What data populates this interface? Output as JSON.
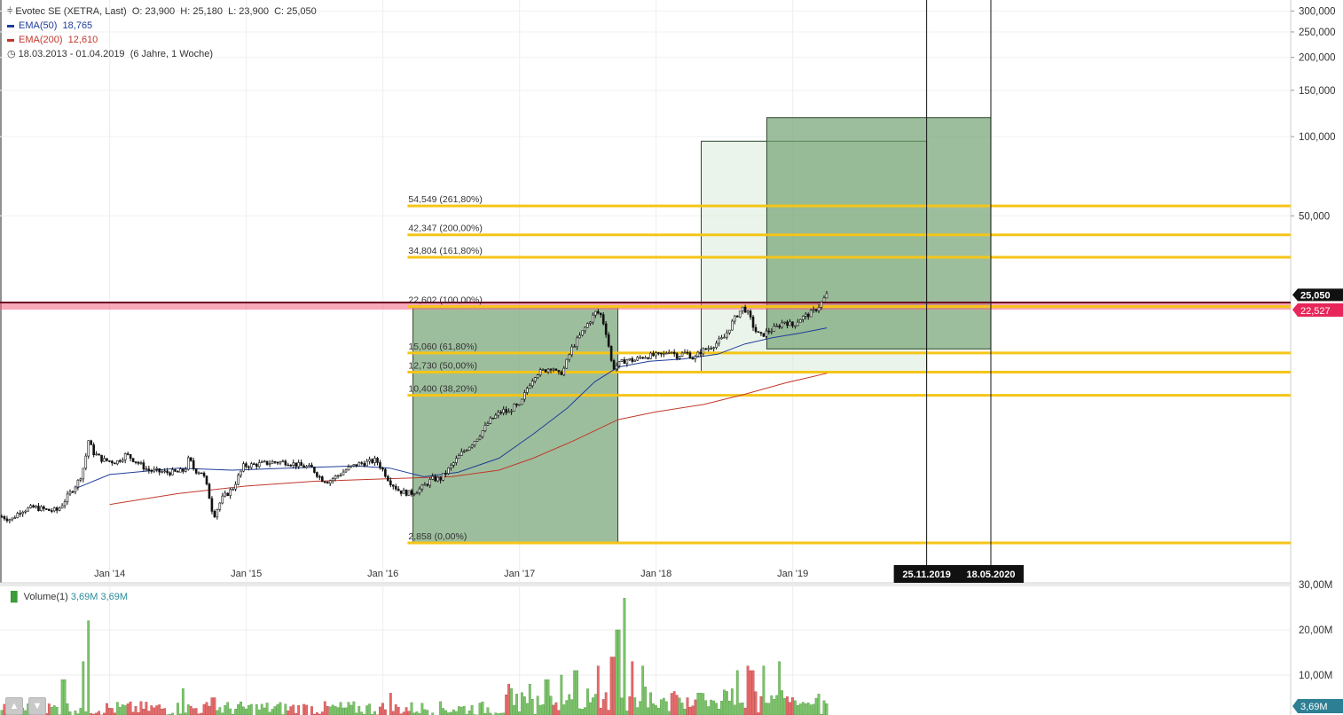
{
  "legend": {
    "symbol": "Evotec SE (XETRA, Last)",
    "ohlc": "O: 23,900  H: 25,180  L: 23,900  C: 25,050",
    "ema50_label": "EMA(50)",
    "ema50_value": "18,765",
    "ema200_label": "EMA(200)",
    "ema200_value": "12,610",
    "range": "18.03.2013 - 01.04.2019",
    "range_note": "(6 Jahre, 1 Woche)"
  },
  "volume_legend": {
    "label": "Volume(1)",
    "value1": "3,69M",
    "value2": "3,69M"
  },
  "colors": {
    "fib": "#f5c518",
    "ema50": "#1f3d99",
    "ema200": "#c0392b",
    "box_dark": "#6f9f6f",
    "box_light": "#d6ead6",
    "pink": "#f06080",
    "price_badge": "#111111",
    "pink_badge": "#e8265a",
    "vol_up": "#7cc46a",
    "vol_down": "#e86a6a"
  },
  "chart_data": [
    {
      "type": "candlestick",
      "title": "",
      "y_scale": "log",
      "y_ticks": [
        "300,000",
        "250,000",
        "200,000",
        "150,000",
        "100,000",
        "50,000"
      ],
      "y_tick_values": [
        300,
        250,
        200,
        150,
        100,
        50
      ],
      "x_ticks": [
        "Jan '14",
        "Jan '15",
        "Jan '16",
        "Jan '17",
        "Jan '18",
        "Jan '19"
      ],
      "x_tick_values": [
        2014.0,
        2015.0,
        2016.0,
        2017.0,
        2018.0,
        2019.0
      ],
      "x_range": [
        2013.21,
        2019.25
      ],
      "price_path": [
        [
          2013.21,
          3.6
        ],
        [
          2013.28,
          3.5
        ],
        [
          2013.35,
          3.8
        ],
        [
          2013.45,
          3.9
        ],
        [
          2013.55,
          3.8
        ],
        [
          2013.62,
          3.8
        ],
        [
          2013.72,
          4.5
        ],
        [
          2013.78,
          5.0
        ],
        [
          2013.82,
          5.8
        ],
        [
          2013.84,
          7.1
        ],
        [
          2013.88,
          6.3
        ],
        [
          2013.95,
          5.9
        ],
        [
          2014.05,
          5.8
        ],
        [
          2014.12,
          6.2
        ],
        [
          2014.2,
          5.8
        ],
        [
          2014.28,
          5.4
        ],
        [
          2014.4,
          5.3
        ],
        [
          2014.5,
          5.3
        ],
        [
          2014.55,
          5.4
        ],
        [
          2014.58,
          6.0
        ],
        [
          2014.62,
          5.4
        ],
        [
          2014.68,
          5.3
        ],
        [
          2014.72,
          4.5
        ],
        [
          2014.76,
          3.6
        ],
        [
          2014.82,
          4.2
        ],
        [
          2014.9,
          4.6
        ],
        [
          2014.98,
          5.6
        ],
        [
          2015.1,
          5.7
        ],
        [
          2015.2,
          5.8
        ],
        [
          2015.3,
          5.8
        ],
        [
          2015.4,
          5.6
        ],
        [
          2015.48,
          5.5
        ],
        [
          2015.55,
          5.0
        ],
        [
          2015.6,
          4.9
        ],
        [
          2015.68,
          5.2
        ],
        [
          2015.75,
          5.5
        ],
        [
          2015.82,
          5.7
        ],
        [
          2015.9,
          5.8
        ],
        [
          2015.95,
          5.9
        ],
        [
          2016.0,
          5.4
        ],
        [
          2016.05,
          4.9
        ],
        [
          2016.12,
          4.5
        ],
        [
          2016.2,
          4.4
        ],
        [
          2016.28,
          4.6
        ],
        [
          2016.36,
          5.0
        ],
        [
          2016.42,
          5.0
        ],
        [
          2016.5,
          5.6
        ],
        [
          2016.58,
          6.3
        ],
        [
          2016.66,
          6.9
        ],
        [
          2016.72,
          7.5
        ],
        [
          2016.78,
          8.3
        ],
        [
          2016.84,
          8.8
        ],
        [
          2016.88,
          9.1
        ],
        [
          2016.92,
          8.9
        ],
        [
          2016.95,
          9.4
        ],
        [
          2017.0,
          9.4
        ],
        [
          2017.06,
          11.2
        ],
        [
          2017.12,
          12.6
        ],
        [
          2017.18,
          12.9
        ],
        [
          2017.24,
          13.4
        ],
        [
          2017.28,
          12.4
        ],
        [
          2017.32,
          12.9
        ],
        [
          2017.38,
          15.6
        ],
        [
          2017.44,
          17.4
        ],
        [
          2017.5,
          19.5
        ],
        [
          2017.56,
          21.6
        ],
        [
          2017.6,
          20.9
        ],
        [
          2017.64,
          17.5
        ],
        [
          2017.68,
          13.2
        ],
        [
          2017.72,
          13.6
        ],
        [
          2017.78,
          14.2
        ],
        [
          2017.84,
          14.1
        ],
        [
          2017.9,
          14.6
        ],
        [
          2017.96,
          14.7
        ],
        [
          2018.05,
          14.8
        ],
        [
          2018.1,
          15.5
        ],
        [
          2018.15,
          14.7
        ],
        [
          2018.22,
          15.1
        ],
        [
          2018.28,
          14.3
        ],
        [
          2018.32,
          15.2
        ],
        [
          2018.38,
          15.7
        ],
        [
          2018.44,
          16.4
        ],
        [
          2018.5,
          17.3
        ],
        [
          2018.56,
          19.8
        ],
        [
          2018.6,
          21.3
        ],
        [
          2018.64,
          22.5
        ],
        [
          2018.68,
          20.9
        ],
        [
          2018.72,
          18.5
        ],
        [
          2018.76,
          17.4
        ],
        [
          2018.82,
          18.2
        ],
        [
          2018.88,
          18.8
        ],
        [
          2018.94,
          19.9
        ],
        [
          2019.0,
          19.1
        ],
        [
          2019.05,
          20.3
        ],
        [
          2019.1,
          20.9
        ],
        [
          2019.15,
          21.6
        ],
        [
          2019.2,
          23.0
        ],
        [
          2019.25,
          25.05
        ]
      ],
      "ema50_path": [
        [
          2013.75,
          4.6
        ],
        [
          2014.0,
          5.2
        ],
        [
          2014.5,
          5.5
        ],
        [
          2014.9,
          5.4
        ],
        [
          2015.3,
          5.5
        ],
        [
          2015.8,
          5.6
        ],
        [
          2016.05,
          5.5
        ],
        [
          2016.3,
          5.1
        ],
        [
          2016.55,
          5.3
        ],
        [
          2016.85,
          6.0
        ],
        [
          2017.1,
          7.4
        ],
        [
          2017.35,
          9.3
        ],
        [
          2017.55,
          11.7
        ],
        [
          2017.72,
          13.3
        ],
        [
          2017.95,
          14.0
        ],
        [
          2018.2,
          14.3
        ],
        [
          2018.45,
          14.9
        ],
        [
          2018.65,
          16.3
        ],
        [
          2018.85,
          17.2
        ],
        [
          2019.05,
          17.9
        ],
        [
          2019.25,
          18.765
        ]
      ],
      "ema200_path": [
        [
          2014.0,
          4.0
        ],
        [
          2014.5,
          4.4
        ],
        [
          2015.0,
          4.7
        ],
        [
          2015.5,
          4.9
        ],
        [
          2016.0,
          5.0
        ],
        [
          2016.5,
          5.1
        ],
        [
          2016.85,
          5.4
        ],
        [
          2017.1,
          6.0
        ],
        [
          2017.4,
          7.0
        ],
        [
          2017.72,
          8.4
        ],
        [
          2018.0,
          9.0
        ],
        [
          2018.35,
          9.6
        ],
        [
          2018.65,
          10.5
        ],
        [
          2018.95,
          11.6
        ],
        [
          2019.25,
          12.61
        ]
      ],
      "fib_levels": [
        {
          "label": "54,549 (261,80%)",
          "value": 54.549
        },
        {
          "label": "42,347 (200,00%)",
          "value": 42.347
        },
        {
          "label": "34,804 (161,80%)",
          "value": 34.804
        },
        {
          "label": "22,602 (100,00%)",
          "value": 22.602
        },
        {
          "label": "15,060 (61,80%)",
          "value": 15.06
        },
        {
          "label": "12,730 (50,00%)",
          "value": 12.73
        },
        {
          "label": "10,400 (38,20%)",
          "value": 10.4
        },
        {
          "label": "2,858 (0,00%)",
          "value": 2.858
        }
      ],
      "fib_start_x": 2016.18,
      "boxes": [
        {
          "kind": "dark",
          "x0": 2016.22,
          "x1": 2017.72,
          "y0": 2.858,
          "y1": 22.602
        },
        {
          "kind": "light",
          "x0": 2018.33,
          "x1": 2019.98,
          "y0": 12.73,
          "y1": 96.0
        },
        {
          "kind": "dark",
          "x0": 2018.81,
          "x1": 2020.45,
          "y0": 15.6,
          "y1": 118.0
        }
      ],
      "resistance_line": 22.527,
      "vertical_markers": [
        {
          "label": "25.11.2019",
          "x": 2019.98
        },
        {
          "label": "18.05.2020",
          "x": 2020.45
        }
      ],
      "last_price_label": "25,050",
      "last_price": 25.05,
      "level_label": "22,527"
    },
    {
      "type": "bar",
      "title": "",
      "y_ticks": [
        "30,00M",
        "20,00M",
        "10,00M"
      ],
      "y_tick_values": [
        30,
        20,
        10
      ],
      "last_value_label": "3,69M",
      "last_value": 3.69,
      "spikes": [
        {
          "x": 2013.84,
          "value": 22
        },
        {
          "x": 2013.8,
          "value": 13
        },
        {
          "x": 2013.66,
          "value": 9
        },
        {
          "x": 2014.53,
          "value": 7
        },
        {
          "x": 2014.76,
          "value": 5
        },
        {
          "x": 2016.05,
          "value": 6
        },
        {
          "x": 2017.08,
          "value": 8
        },
        {
          "x": 2017.2,
          "value": 9
        },
        {
          "x": 2017.3,
          "value": 10
        },
        {
          "x": 2017.41,
          "value": 11
        },
        {
          "x": 2017.58,
          "value": 12
        },
        {
          "x": 2017.68,
          "value": 14
        },
        {
          "x": 2017.72,
          "value": 20
        },
        {
          "x": 2017.77,
          "value": 27
        },
        {
          "x": 2017.82,
          "value": 13
        },
        {
          "x": 2017.9,
          "value": 12
        },
        {
          "x": 2018.6,
          "value": 11
        },
        {
          "x": 2018.67,
          "value": 12
        },
        {
          "x": 2018.7,
          "value": 11
        },
        {
          "x": 2018.78,
          "value": 12
        },
        {
          "x": 2018.9,
          "value": 13
        },
        {
          "x": 2019.25,
          "value": 3.69
        }
      ]
    }
  ]
}
